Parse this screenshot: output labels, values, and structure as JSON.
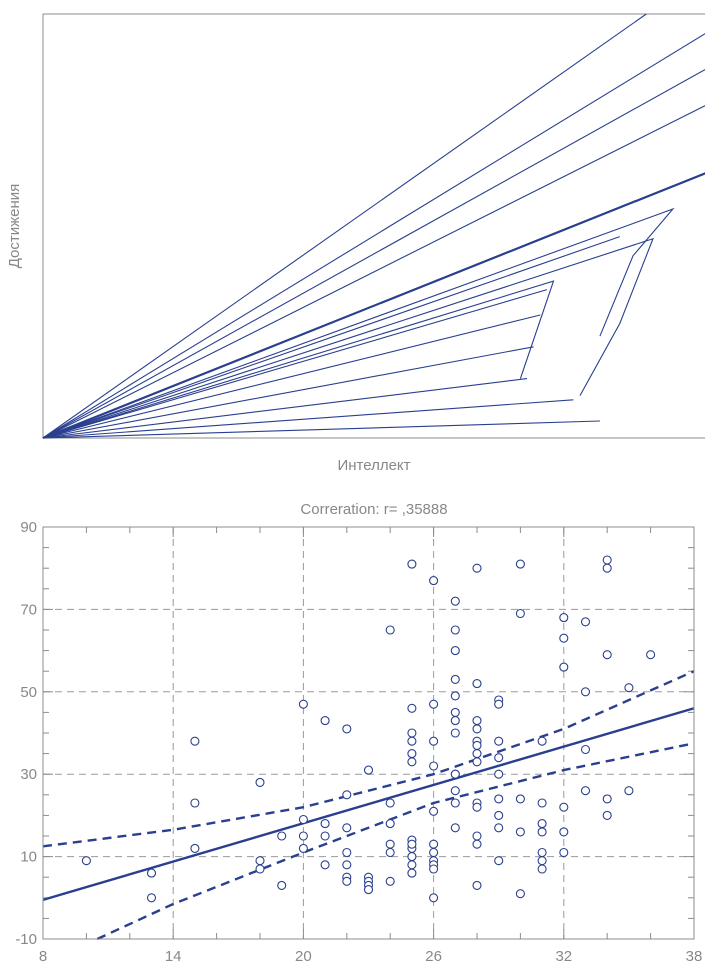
{
  "colors": {
    "series": "#2a3f8f",
    "grid": "#9a9a9a",
    "frame": "#8c8c8c",
    "label": "#888888"
  },
  "chart_data": [
    {
      "type": "line",
      "title": "",
      "xlabel": "Интеллект",
      "ylabel": "Достижения",
      "xlim": [
        0,
        100
      ],
      "ylim": [
        0,
        100
      ],
      "grid": false,
      "series": [
        {
          "x": [
            0,
            91
          ],
          "y": [
            0,
            100
          ]
        },
        {
          "x": [
            0,
            100
          ],
          "y": [
            0,
            95.5
          ]
        },
        {
          "x": [
            0,
            100
          ],
          "y": [
            0,
            87
          ]
        },
        {
          "x": [
            0,
            100
          ],
          "y": [
            0,
            78.5
          ]
        },
        {
          "x": [
            0,
            100
          ],
          "y": [
            0,
            62.5
          ],
          "emphasis": true
        },
        {
          "x": [
            0,
            95,
            89,
            84
          ],
          "y": [
            0,
            54,
            43,
            24
          ]
        },
        {
          "x": [
            0,
            87
          ],
          "y": [
            0,
            47.5
          ]
        },
        {
          "x": [
            0,
            77,
            72
          ],
          "y": [
            0,
            37,
            14
          ]
        },
        {
          "x": [
            0,
            76
          ],
          "y": [
            0,
            35
          ]
        },
        {
          "x": [
            0,
            75
          ],
          "y": [
            0,
            29
          ]
        },
        {
          "x": [
            0,
            74
          ],
          "y": [
            0,
            21.5
          ]
        },
        {
          "x": [
            0,
            73
          ],
          "y": [
            0,
            14
          ]
        },
        {
          "x": [
            0,
            92,
            87,
            81
          ],
          "y": [
            0,
            47,
            27,
            10
          ]
        },
        {
          "x": [
            0,
            80
          ],
          "y": [
            0,
            9
          ]
        },
        {
          "x": [
            0,
            84
          ],
          "y": [
            0,
            4
          ]
        }
      ]
    },
    {
      "type": "scatter",
      "title": "Correration: r= ,35888",
      "xlabel": "",
      "ylabel": "",
      "xlim": [
        8,
        38
      ],
      "ylim": [
        -10,
        90
      ],
      "xticks": [
        8,
        14,
        20,
        26,
        32,
        38
      ],
      "xtick_labels": [
        "8",
        "14",
        "20",
        "26",
        "32",
        "38"
      ],
      "yticks": [
        -10,
        10,
        30,
        50,
        70,
        90
      ],
      "ytick_labels": [
        "-10",
        "10",
        "30",
        "50",
        "70",
        "90"
      ],
      "grid": true,
      "regression": {
        "x": [
          8,
          38
        ],
        "y": [
          -0.5,
          46
        ]
      },
      "confidence_upper": {
        "x": [
          8,
          14,
          20,
          26,
          32,
          38
        ],
        "y": [
          12.5,
          16.5,
          22,
          30,
          41,
          55
        ]
      },
      "confidence_lower": {
        "x": [
          10.5,
          14,
          20,
          26,
          32,
          38
        ],
        "y": [
          -10,
          -1.5,
          11,
          23,
          31,
          37.5
        ]
      },
      "points": {
        "x": [
          10,
          13,
          13,
          15,
          15,
          15,
          18,
          18,
          18,
          19,
          19,
          20,
          20,
          20,
          20,
          21,
          21,
          21,
          21,
          22,
          22,
          22,
          22,
          22,
          22,
          22,
          23,
          23,
          23,
          23,
          23,
          24,
          24,
          24,
          24,
          24,
          24,
          25,
          25,
          25,
          25,
          25,
          25,
          25,
          25,
          25,
          25,
          25,
          25,
          26,
          26,
          26,
          26,
          26,
          26,
          26,
          26,
          26,
          26,
          26,
          27,
          27,
          27,
          27,
          27,
          27,
          27,
          27,
          27,
          27,
          27,
          27,
          27,
          28,
          28,
          28,
          28,
          28,
          28,
          28,
          28,
          28,
          28,
          28,
          28,
          28,
          29,
          29,
          29,
          29,
          29,
          29,
          29,
          29,
          29,
          30,
          30,
          30,
          30,
          30,
          31,
          31,
          31,
          31,
          31,
          31,
          31,
          32,
          32,
          32,
          32,
          32,
          32,
          33,
          33,
          33,
          33,
          34,
          34,
          34,
          34,
          34,
          35,
          35,
          36
        ],
        "y": [
          9,
          6,
          0,
          38,
          23,
          12,
          28,
          9,
          7,
          15,
          3,
          47,
          19,
          15,
          12,
          43,
          18,
          15,
          8,
          41,
          25,
          17,
          11,
          8,
          5,
          4,
          31,
          5,
          4,
          3,
          2,
          65,
          23,
          18,
          13,
          11,
          4,
          81,
          46,
          40,
          38,
          35,
          33,
          14,
          12,
          10,
          8,
          6,
          13,
          77,
          47,
          38,
          32,
          21,
          13,
          11,
          9,
          8,
          7,
          0,
          72,
          65,
          60,
          53,
          49,
          45,
          43,
          40,
          30,
          26,
          23,
          17,
          30,
          80,
          52,
          43,
          41,
          38,
          37,
          35,
          33,
          23,
          22,
          15,
          13,
          3,
          48,
          47,
          38,
          34,
          30,
          24,
          20,
          17,
          9,
          1,
          81,
          69,
          24,
          16,
          38,
          23,
          18,
          16,
          11,
          9,
          7,
          68,
          63,
          56,
          22,
          16,
          11,
          67,
          50,
          36,
          26,
          82,
          80,
          59,
          24,
          20,
          51,
          26,
          59
        ]
      }
    }
  ]
}
